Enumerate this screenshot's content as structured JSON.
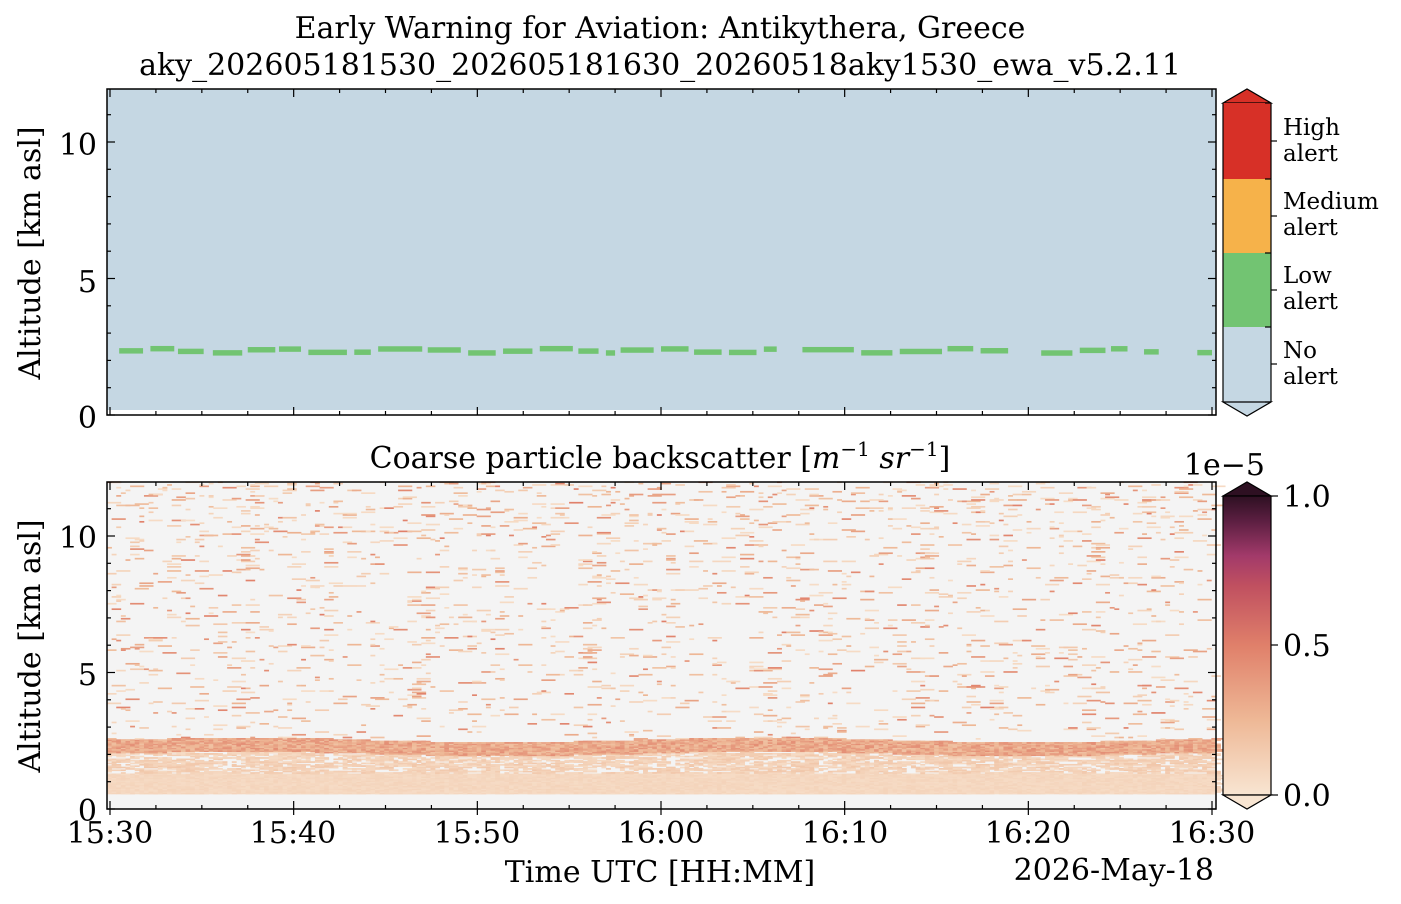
{
  "title_line1": "Early Warning for Aviation: Antikythera, Greece",
  "title_line2": "aky_202605181530_202605181630_20260518aky1530_ewa_v5.2.11",
  "chart_data": [
    {
      "type": "heatmap",
      "name": "alert-level",
      "ylabel": "Altitude [km asl]",
      "ylim": [
        0,
        12
      ],
      "yticks": [
        "0",
        "5",
        "10"
      ],
      "xrange_minutes": [
        0,
        60
      ],
      "colorbar": {
        "type": "categorical",
        "labels": [
          [
            "No",
            "alert"
          ],
          [
            "Low",
            "alert"
          ],
          [
            "Medium",
            "alert"
          ],
          [
            "High",
            "alert"
          ]
        ],
        "colors": [
          "#c5d7e3",
          "#72c472",
          "#f6b24a",
          "#d73027"
        ]
      },
      "background_level": "No alert",
      "low_alert_layer": {
        "altitude_km_min": 2.1,
        "altitude_km_max": 2.45,
        "segments_minutes": [
          [
            0.5,
            1.8
          ],
          [
            2.2,
            3.5
          ],
          [
            3.7,
            5.1
          ],
          [
            5.6,
            7.2
          ],
          [
            7.5,
            9.0
          ],
          [
            9.2,
            10.4
          ],
          [
            10.8,
            12.9
          ],
          [
            13.3,
            14.2
          ],
          [
            14.6,
            17.0
          ],
          [
            17.3,
            19.1
          ],
          [
            19.5,
            21.0
          ],
          [
            21.4,
            23.0
          ],
          [
            23.4,
            25.2
          ],
          [
            25.5,
            26.6
          ],
          [
            27.0,
            27.5
          ],
          [
            27.8,
            29.6
          ],
          [
            30.0,
            31.5
          ],
          [
            31.8,
            33.3
          ],
          [
            33.7,
            35.2
          ],
          [
            35.6,
            36.3
          ],
          [
            37.7,
            40.5
          ],
          [
            40.9,
            42.6
          ],
          [
            43.0,
            45.3
          ],
          [
            45.6,
            47.0
          ],
          [
            47.4,
            48.9
          ],
          [
            50.7,
            52.4
          ],
          [
            52.8,
            54.2
          ],
          [
            54.5,
            55.4
          ],
          [
            56.3,
            57.1
          ],
          [
            59.2,
            60.0
          ]
        ]
      }
    },
    {
      "type": "heatmap",
      "name": "coarse-backscatter",
      "title": "Coarse particle backscatter [m⁻¹ sr⁻¹]",
      "ylabel": "Altitude [km asl]",
      "xlabel": "Time UTC [HH:MM]",
      "date_label": "2026-May-18",
      "ylim": [
        0,
        12
      ],
      "yticks": [
        "0",
        "5",
        "10"
      ],
      "x_tick_labels": [
        "15:30",
        "15:40",
        "15:50",
        "16:00",
        "16:10",
        "16:20",
        "16:30"
      ],
      "colorbar": {
        "type": "continuous",
        "range": [
          0.0,
          1.0
        ],
        "tick_labels": [
          "0.0",
          "0.5",
          "1.0"
        ],
        "multiplier": "1e−5",
        "colors": [
          "#f8e5d2",
          "#e0806a",
          "#a23a6a",
          "#2e1022"
        ]
      },
      "features": {
        "dense_layer_altitude_km": [
          2.0,
          2.5
        ],
        "dense_layer_value": 0.35,
        "near_surface_altitude_km": [
          0.5,
          1.2
        ],
        "near_surface_value": 0.05,
        "background_value": 0.0
      }
    }
  ]
}
